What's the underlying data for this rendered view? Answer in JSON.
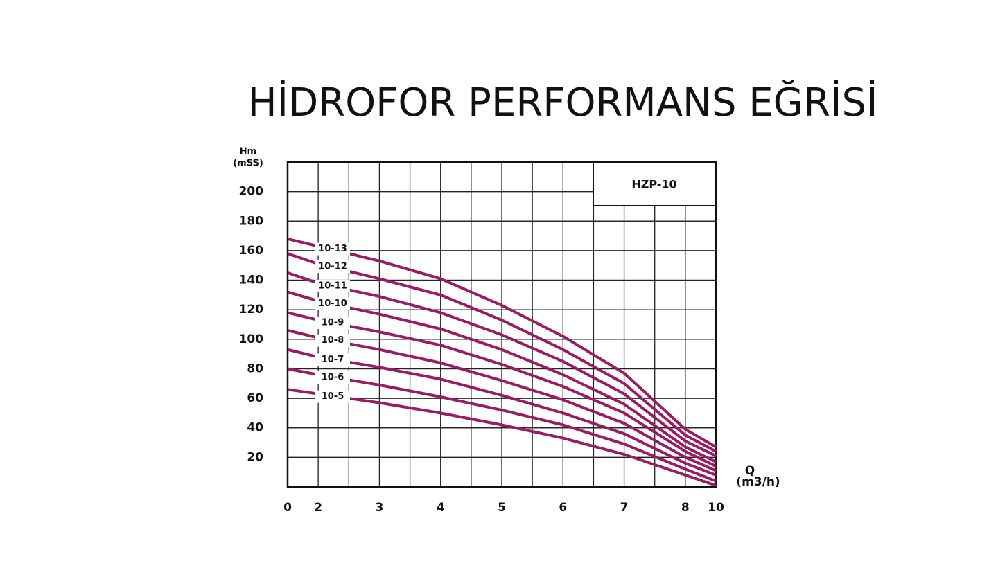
{
  "chart_data": {
    "type": "line",
    "title": "HİDROFOR PERFORMANS EĞRİSİ",
    "legend_title": "HZP-10",
    "y_label": [
      "Hm",
      "(mSS)"
    ],
    "x_label": [
      "Q",
      "(m3/h)"
    ],
    "x": [
      0,
      2,
      3,
      4,
      5,
      6,
      7,
      8,
      10
    ],
    "xticks": [
      0,
      2,
      3,
      4,
      5,
      6,
      7,
      8,
      10
    ],
    "ylim": [
      0,
      220
    ],
    "yticks": [
      20,
      40,
      60,
      80,
      100,
      120,
      140,
      160,
      180,
      200
    ],
    "grid": true,
    "color": "#9b1b63",
    "series": [
      {
        "name": "10-13",
        "values": [
          168,
          163,
          153,
          141,
          123,
          102,
          77,
          39,
          27
        ]
      },
      {
        "name": "10-12",
        "values": [
          158,
          151,
          141,
          130,
          113,
          93,
          70,
          35,
          24
        ]
      },
      {
        "name": "10-11",
        "values": [
          145,
          138,
          129,
          118,
          103,
          85,
          63,
          31,
          21
        ]
      },
      {
        "name": "10-10",
        "values": [
          132,
          126,
          117,
          107,
          93,
          76,
          56,
          27,
          17
        ]
      },
      {
        "name": "10-9",
        "values": [
          118,
          113,
          105,
          96,
          83,
          68,
          50,
          24,
          14
        ]
      },
      {
        "name": "10-8",
        "values": [
          106,
          101,
          93,
          84,
          72,
          59,
          43,
          20,
          11
        ]
      },
      {
        "name": "10-7",
        "values": [
          93,
          88,
          81,
          73,
          62,
          50,
          36,
          16,
          8
        ]
      },
      {
        "name": "10-6",
        "values": [
          80,
          76,
          69,
          61,
          52,
          42,
          29,
          12,
          4
        ]
      },
      {
        "name": "10-5",
        "values": [
          66,
          63,
          57,
          50,
          42,
          33,
          22,
          8,
          1
        ]
      }
    ]
  }
}
